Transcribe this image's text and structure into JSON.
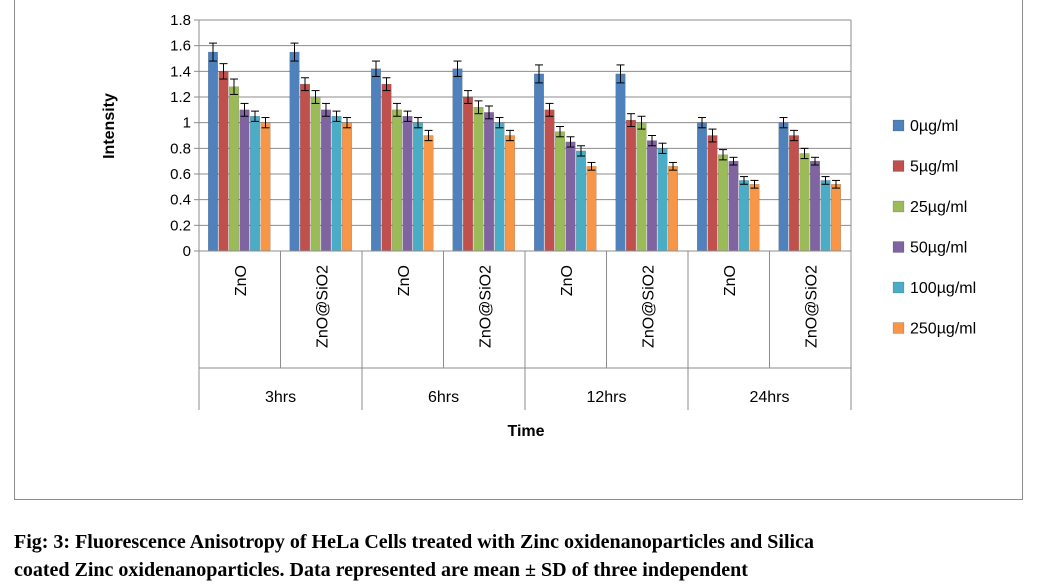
{
  "chart_data": {
    "type": "bar",
    "xlabel": "Time",
    "ylabel": "Intensity",
    "ylim": [
      0,
      1.8
    ],
    "yticks": [
      "0",
      "0.2",
      "0.4",
      "0.6",
      "0.8",
      "1",
      "1.2",
      "1.4",
      "1.6",
      "1.8"
    ],
    "grid": true,
    "legend_position": "right",
    "groups": [
      {
        "label": "3hrs",
        "categories": [
          "ZnO",
          "ZnO@SiO2"
        ]
      },
      {
        "label": "6hrs",
        "categories": [
          "ZnO",
          "ZnO@SiO2"
        ]
      },
      {
        "label": "12hrs",
        "categories": [
          "ZnO",
          "ZnO@SiO2"
        ]
      },
      {
        "label": "24hrs",
        "categories": [
          "ZnO",
          "ZnO@SiO2"
        ]
      }
    ],
    "series": [
      {
        "name": "0µg/ml",
        "color": "#4f81bd",
        "values": [
          1.55,
          1.55,
          1.42,
          1.42,
          1.38,
          1.38,
          1.0,
          1.0
        ],
        "errors": [
          0.07,
          0.07,
          0.06,
          0.06,
          0.07,
          0.07,
          0.04,
          0.04
        ]
      },
      {
        "name": "5µg/ml",
        "color": "#c0504d",
        "values": [
          1.4,
          1.3,
          1.3,
          1.2,
          1.1,
          1.02,
          0.9,
          0.9
        ],
        "errors": [
          0.06,
          0.05,
          0.05,
          0.05,
          0.05,
          0.05,
          0.05,
          0.04
        ]
      },
      {
        "name": "25µg/ml",
        "color": "#9bbb59",
        "values": [
          1.28,
          1.2,
          1.1,
          1.12,
          0.93,
          1.0,
          0.75,
          0.76
        ],
        "errors": [
          0.06,
          0.05,
          0.05,
          0.05,
          0.04,
          0.05,
          0.04,
          0.04
        ]
      },
      {
        "name": "50µg/ml",
        "color": "#8064a2",
        "values": [
          1.1,
          1.1,
          1.05,
          1.08,
          0.85,
          0.86,
          0.7,
          0.7
        ],
        "errors": [
          0.05,
          0.05,
          0.04,
          0.05,
          0.04,
          0.04,
          0.03,
          0.03
        ]
      },
      {
        "name": "100µg/ml",
        "color": "#4bacc6",
        "values": [
          1.05,
          1.05,
          1.0,
          1.0,
          0.78,
          0.8,
          0.55,
          0.55
        ],
        "errors": [
          0.04,
          0.04,
          0.04,
          0.04,
          0.04,
          0.04,
          0.03,
          0.03
        ]
      },
      {
        "name": "250µg/ml",
        "color": "#f79646",
        "values": [
          1.0,
          1.0,
          0.9,
          0.9,
          0.66,
          0.66,
          0.52,
          0.52
        ],
        "errors": [
          0.04,
          0.04,
          0.04,
          0.04,
          0.03,
          0.03,
          0.03,
          0.03
        ]
      }
    ]
  },
  "caption": {
    "line1": "Fig: 3: Fluorescence Anisotropy of  HeLa Cells treated with Zinc oxidenanoparticles and Silica",
    "line2": "coated  Zinc  oxidenanoparticles.  Data  represented  are  mean  ±  SD  of  three  independent"
  }
}
